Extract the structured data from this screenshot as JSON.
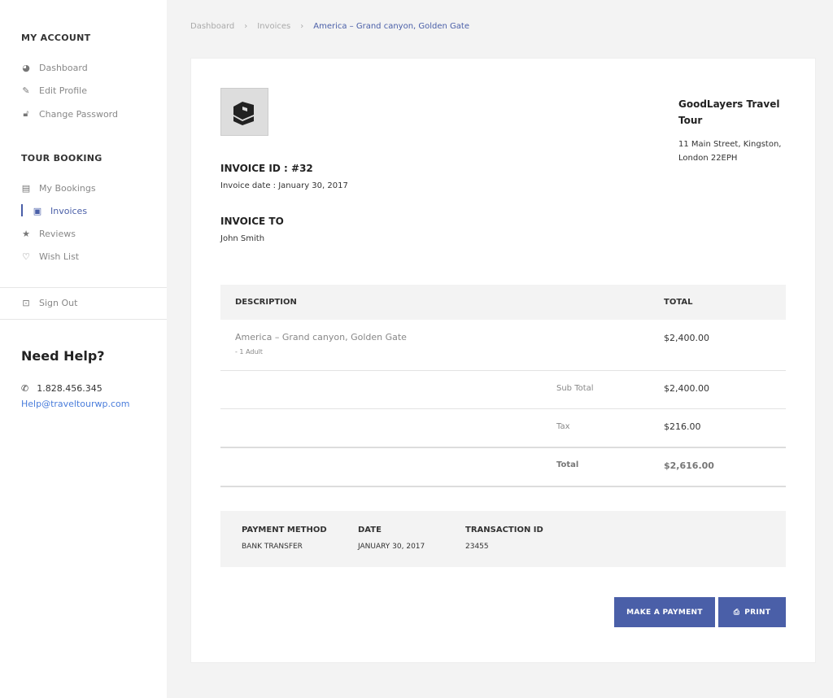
{
  "sidebar": {
    "my_account": "MY ACCOUNT",
    "account_items": [
      {
        "label": "Dashboard",
        "icon": "dashboard-icon"
      },
      {
        "label": "Edit Profile",
        "icon": "edit-icon"
      },
      {
        "label": "Change Password",
        "icon": "lock-icon"
      }
    ],
    "tour_booking": "TOUR BOOKING",
    "booking_items": [
      {
        "label": "My Bookings",
        "icon": "document-icon"
      },
      {
        "label": "Invoices",
        "icon": "wallet-icon",
        "active": true
      },
      {
        "label": "Reviews",
        "icon": "star-icon"
      },
      {
        "label": "Wish List",
        "icon": "heart-icon"
      }
    ],
    "sign_out": "Sign Out",
    "help_title": "Need Help?",
    "phone": "1.828.456.345",
    "email": "Help@traveltourwp.com"
  },
  "breadcrumb": [
    "Dashboard",
    "Invoices",
    "America – Grand canyon, Golden Gate"
  ],
  "invoice": {
    "company": "GoodLayers Travel Tour",
    "address_line1": "11 Main Street, Kingston,",
    "address_line2": "London 22EPH",
    "id_label": "INVOICE ID : #32",
    "date": "Invoice date : January 30, 2017",
    "to_label": "INVOICE TO",
    "to_name": "John Smith",
    "table": {
      "col_description": "DESCRIPTION",
      "col_total": "TOTAL",
      "item": "America – Grand canyon, Golden Gate",
      "item_sub": "- 1 Adult",
      "item_total": "$2,400.00",
      "subtotal_label": "Sub Total",
      "subtotal": "$2,400.00",
      "tax_label": "Tax",
      "tax": "$216.00",
      "total_label": "Total",
      "total": "$2,616.00"
    },
    "payment": {
      "method_label": "PAYMENT METHOD",
      "method": "BANK TRANSFER",
      "date_label": "DATE",
      "date": "JANUARY 30, 2017",
      "txn_label": "TRANSACTION ID",
      "txn": "23455"
    },
    "make_payment": "MAKE A PAYMENT",
    "print": "PRINT"
  },
  "colors": {
    "accent": "#4a5fa8",
    "link": "#4a7ddb"
  }
}
